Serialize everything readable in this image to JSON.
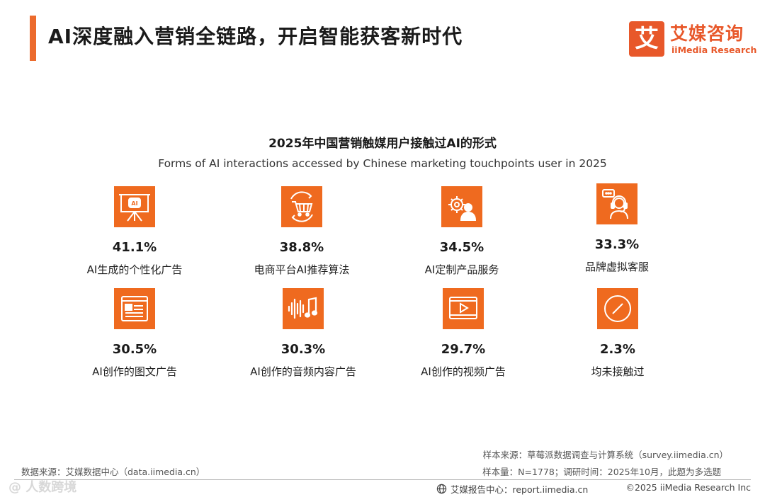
{
  "header": {
    "title": "AI深度融入营销全链路，开启智能获客新时代",
    "accent_color": "#ec6b2d"
  },
  "logo": {
    "mark": "艾",
    "name_cn": "艾媒咨询",
    "name_en": "iiMedia Research",
    "color": "#e8582a"
  },
  "chart": {
    "title_cn": "2025年中国营销触媒用户接触过AI的形式",
    "title_en": "Forms of AI interactions accessed by Chinese marketing touchpoints user in 2025"
  },
  "chart_data": {
    "type": "table",
    "title": "2025年中国营销触媒用户接触过AI的形式",
    "subtitle": "Forms of AI interactions accessed by Chinese marketing touchpoints user in 2025",
    "categories": [
      "AI生成的个性化广告",
      "电商平台AI推荐算法",
      "AI定制产品服务",
      "品牌虚拟客服",
      "AI创作的图文广告",
      "AI创作的音频内容广告",
      "AI创作的视频广告",
      "均未接触过"
    ],
    "values": [
      41.1,
      38.8,
      34.5,
      33.3,
      30.5,
      30.3,
      29.7,
      2.3
    ],
    "unit": "%"
  },
  "items": [
    {
      "value": "41.1%",
      "label": "AI生成的个性化广告",
      "icon": "ai-presentation-icon"
    },
    {
      "value": "38.8%",
      "label": "电商平台AI推荐算法",
      "icon": "shopping-cart-icon"
    },
    {
      "value": "34.5%",
      "label": "AI定制产品服务",
      "icon": "gear-user-icon"
    },
    {
      "value": "33.3%",
      "label": "品牌虚拟客服",
      "icon": "customer-service-icon"
    },
    {
      "value": "30.5%",
      "label": "AI创作的图文广告",
      "icon": "image-text-icon"
    },
    {
      "value": "30.3%",
      "label": "AI创作的音频内容广告",
      "icon": "audio-music-icon"
    },
    {
      "value": "29.7%",
      "label": "AI创作的视频广告",
      "icon": "video-play-icon"
    },
    {
      "value": "2.3%",
      "label": "均未接触过",
      "icon": "none-icon"
    }
  ],
  "footer": {
    "sample_source": "样本来源：草莓派数据调查与计算系统（survey.iimedia.cn）",
    "sample_size": "样本量：N=1778；调研时间：2025年10月，此题为多选题",
    "data_source": "数据来源：艾媒数据中心（data.iimedia.cn）",
    "watermark": "@ 人数跨境",
    "report_center": "艾媒报告中心：report.iimedia.cn",
    "copyright": "©2025  iiMedia Research  Inc"
  },
  "icon_color": "#ef6a1f"
}
